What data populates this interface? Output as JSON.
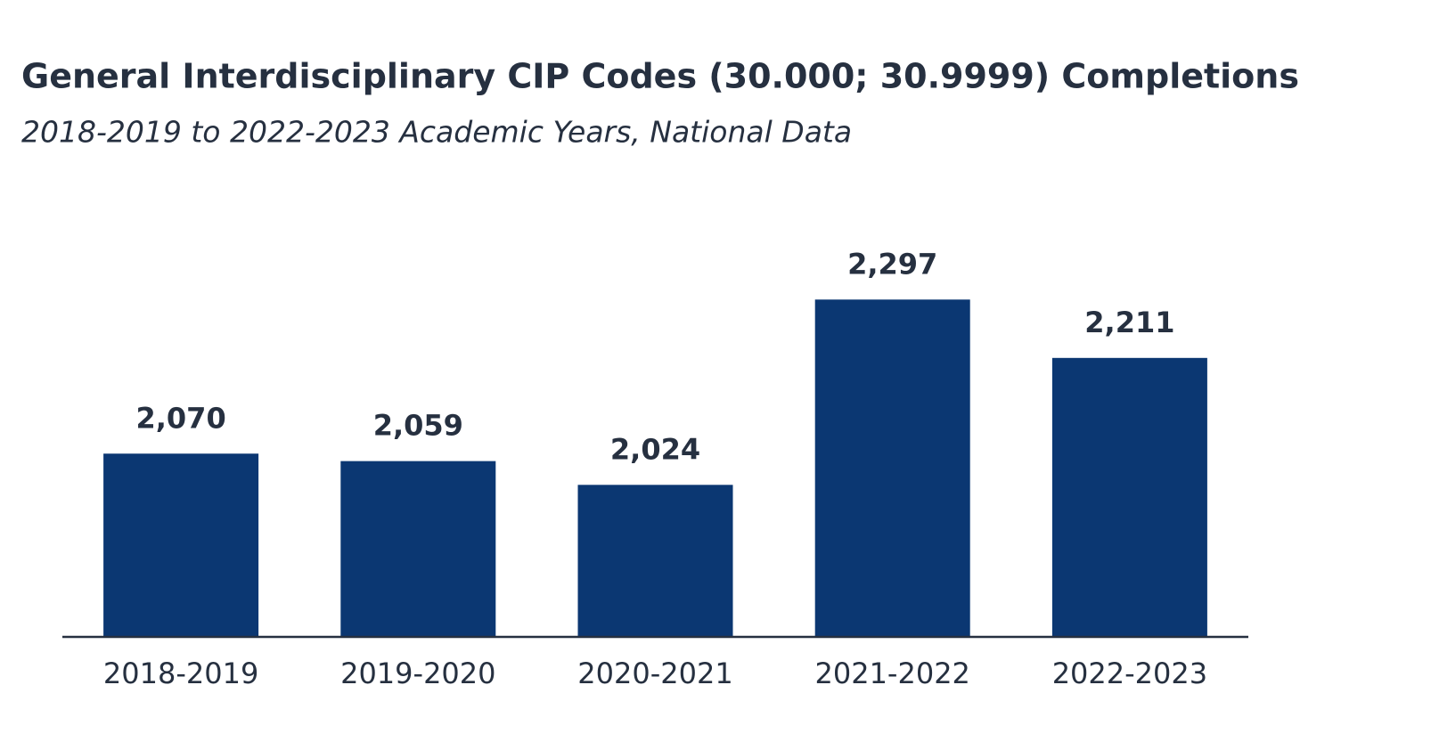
{
  "chart_data": {
    "type": "bar",
    "title": "General Interdisciplinary CIP Codes (30.000; 30.9999) Completions",
    "subtitle": "2018-2019 to 2022-2023 Academic Years, National Data",
    "categories": [
      "2018-2019",
      "2019-2020",
      "2020-2021",
      "2021-2022",
      "2022-2023"
    ],
    "values": [
      2070,
      2059,
      2024,
      2297,
      2211
    ],
    "value_labels": [
      "2,070",
      "2,059",
      "2,024",
      "2,297",
      "2,211"
    ],
    "color": "#0b3772",
    "ylim": [
      1800,
      2300
    ]
  }
}
